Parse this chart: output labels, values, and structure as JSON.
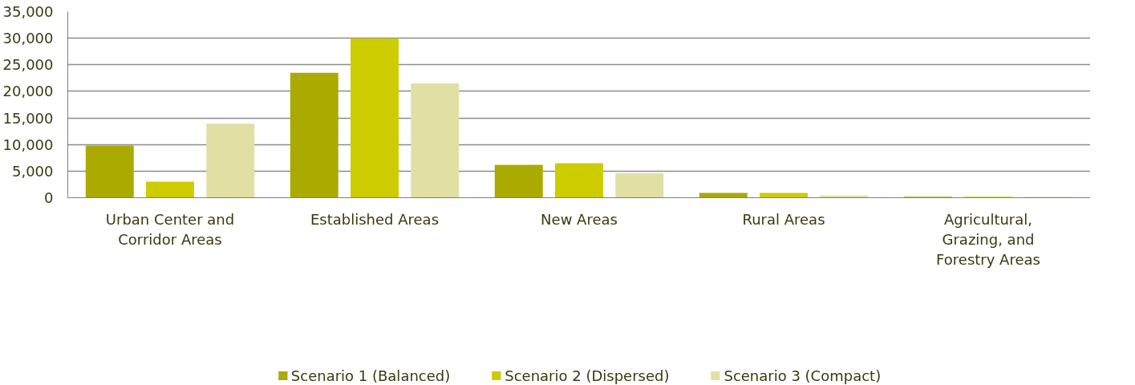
{
  "chart_data": {
    "type": "bar",
    "categories": [
      "Urban Center and Corridor Areas",
      "Established Areas",
      "New Areas",
      "Rural Areas",
      "Agricultural, Grazing, and Forestry Areas"
    ],
    "series": [
      {
        "name": "Scenario 1 (Balanced)",
        "color": "#aaaa00",
        "values": [
          9800,
          23500,
          6200,
          900,
          200
        ]
      },
      {
        "name": "Scenario 2 (Dispersed)",
        "color": "#cccc00",
        "values": [
          3000,
          30000,
          6500,
          900,
          200
        ]
      },
      {
        "name": "Scenario 3 (Compact)",
        "color": "#e0e0a4",
        "values": [
          13900,
          21500,
          4600,
          400,
          200
        ]
      }
    ],
    "ylim": [
      0,
      35000
    ],
    "yticks": [
      {
        "value": 0,
        "label": "0"
      },
      {
        "value": 5000,
        "label": "5,000"
      },
      {
        "value": 10000,
        "label": "10,000"
      },
      {
        "value": 15000,
        "label": "15,000"
      },
      {
        "value": 20000,
        "label": "20,000"
      },
      {
        "value": 25000,
        "label": "25,000"
      },
      {
        "value": 30000,
        "label": "30,000"
      },
      {
        "value": 35000,
        "label": "35,000"
      }
    ],
    "grid": "y",
    "legend": "bottom"
  }
}
